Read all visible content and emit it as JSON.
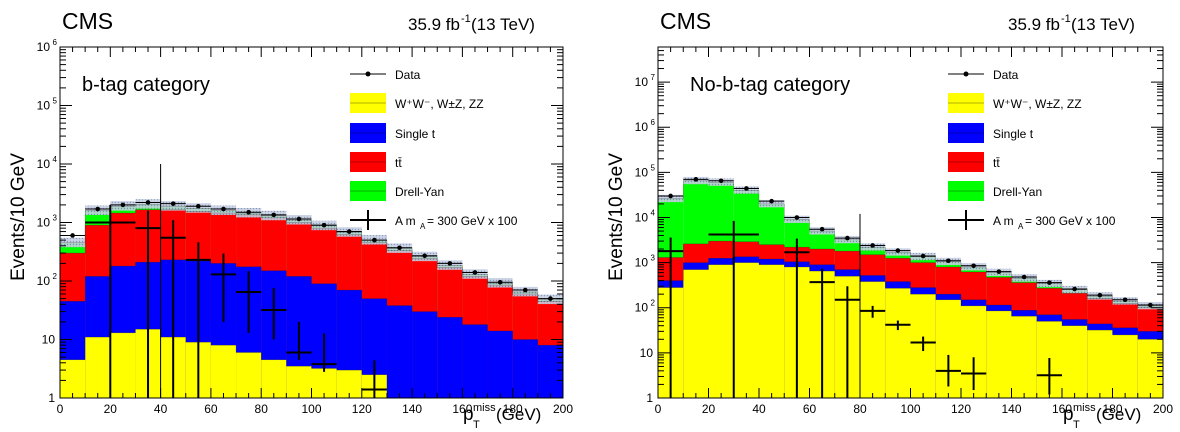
{
  "panels": [
    {
      "experiment": "CMS",
      "lumi": "35.9 fb",
      "lumi_exp": "-1",
      "energy": " (13 TeV)",
      "category": "b-tag category"
    },
    {
      "experiment": "CMS",
      "lumi": "35.9 fb",
      "lumi_exp": "-1",
      "energy": " (13 TeV)",
      "category": "No-b-tag category"
    }
  ],
  "legend": {
    "data": "Data",
    "diboson": "W⁺W⁻, W±Z, ZZ",
    "single_t": "Single t",
    "ttbar": "tt̄",
    "dy": "Drell-Yan",
    "signal": "A m",
    "signal_sub": "A",
    "signal_rest": "= 300 GeV x 100"
  },
  "axes": {
    "ylabel": "Events/10 GeV",
    "xlabel_p": "p",
    "xlabel_sub": "T",
    "xlabel_sup": "miss",
    "xlabel_unit": " (GeV)"
  },
  "colors": {
    "diboson": "#ffff00",
    "single_t": "#0000ff",
    "ttbar": "#ff0000",
    "dy": "#00ff00",
    "band": "#9aa8c8"
  },
  "chart_data": [
    {
      "type": "bar",
      "stacked": true,
      "yscale": "log",
      "xlim": [
        0,
        200
      ],
      "ylim": [
        1,
        1000000
      ],
      "bin_width": 10,
      "x": [
        5,
        15,
        25,
        35,
        45,
        55,
        65,
        75,
        85,
        95,
        105,
        115,
        125,
        135,
        145,
        155,
        165,
        175,
        185,
        195
      ],
      "cut_line_x": 40,
      "series": [
        {
          "name": "W⁺W⁻, W±Z, ZZ",
          "values": [
            4.5,
            11,
            13,
            15,
            11,
            9,
            8,
            6,
            4.5,
            3.5,
            3.2,
            3,
            2.5,
            1,
            1,
            1,
            1,
            1,
            1,
            1
          ]
        },
        {
          "name": "Single t",
          "values": [
            45,
            120,
            180,
            210,
            230,
            220,
            200,
            175,
            150,
            120,
            90,
            70,
            50,
            38,
            30,
            24,
            18,
            14,
            10,
            8
          ]
        },
        {
          "name": "tt̄",
          "values": [
            300,
            900,
            1450,
            1650,
            1650,
            1550,
            1450,
            1350,
            1200,
            1000,
            800,
            620,
            450,
            330,
            240,
            170,
            120,
            85,
            60,
            45
          ]
        },
        {
          "name": "Drell-Yan",
          "values": [
            450,
            1600,
            1900,
            2050,
            1900,
            1750,
            1600,
            1450,
            1300,
            1100,
            880,
            680,
            500,
            360,
            260,
            185,
            130,
            92,
            65,
            48
          ]
        }
      ],
      "data": [
        600,
        1700,
        2000,
        2200,
        2100,
        1900,
        1700,
        1500,
        1350,
        1150,
        900,
        700,
        500,
        370,
        270,
        200,
        140,
        95,
        70,
        50
      ],
      "signal": [
        {
          "x": 20,
          "xerr": 10,
          "y": 1000,
          "yerr": [
            1000,
            1000
          ]
        },
        {
          "x": 35,
          "xerr": 5,
          "y": 800,
          "yerr": [
            800,
            800
          ]
        },
        {
          "x": 45,
          "xerr": 5,
          "y": 550,
          "yerr": [
            550,
            550
          ]
        },
        {
          "x": 55,
          "xerr": 5,
          "y": 230,
          "yerr": [
            230,
            230
          ]
        },
        {
          "x": 65,
          "xerr": 5,
          "y": 130,
          "yerr": [
            110,
            165
          ]
        },
        {
          "x": 75,
          "xerr": 5,
          "y": 65,
          "yerr": [
            52,
            82
          ]
        },
        {
          "x": 85,
          "xerr": 5,
          "y": 32,
          "yerr": [
            22,
            44
          ]
        },
        {
          "x": 95,
          "xerr": 5,
          "y": 6,
          "yerr": [
            1.5,
            14
          ]
        },
        {
          "x": 105,
          "xerr": 5,
          "y": 3.8,
          "yerr": [
            1,
            9
          ]
        },
        {
          "x": 125,
          "xerr": 5,
          "y": 1.4,
          "yerr": [
            1,
            3
          ]
        }
      ]
    },
    {
      "type": "bar",
      "stacked": true,
      "yscale": "log",
      "xlim": [
        0,
        200
      ],
      "ylim": [
        1,
        60000000
      ],
      "bin_width": 10,
      "x": [
        5,
        15,
        25,
        35,
        45,
        55,
        65,
        75,
        85,
        95,
        105,
        115,
        125,
        135,
        145,
        155,
        165,
        175,
        185,
        195
      ],
      "cut_line_x": 80,
      "series": [
        {
          "name": "W⁺W⁻, W±Z, ZZ",
          "values": [
            280,
            700,
            900,
            1000,
            900,
            800,
            650,
            500,
            380,
            270,
            200,
            150,
            110,
            85,
            65,
            50,
            40,
            32,
            25,
            20
          ]
        },
        {
          "name": "Single t",
          "values": [
            400,
            1000,
            1250,
            1350,
            1200,
            1050,
            900,
            700,
            520,
            380,
            280,
            200,
            150,
            115,
            88,
            70,
            55,
            44,
            36,
            30
          ]
        },
        {
          "name": "tt̄",
          "values": [
            1300,
            2600,
            3000,
            2900,
            2500,
            2200,
            2000,
            1800,
            1500,
            1250,
            1000,
            800,
            620,
            470,
            360,
            270,
            210,
            160,
            125,
            100
          ]
        },
        {
          "name": "Drell-Yan",
          "values": [
            26000,
            65000,
            60000,
            40000,
            20000,
            9000,
            5000,
            3200,
            2200,
            1700,
            1350,
            1050,
            800,
            600,
            450,
            340,
            250,
            180,
            140,
            110
          ]
        }
      ],
      "data": [
        30000,
        70000,
        65000,
        44000,
        23000,
        10000,
        5500,
        3500,
        2400,
        1850,
        1400,
        1100,
        850,
        630,
        480,
        360,
        260,
        190,
        150,
        115
      ],
      "signal": [
        {
          "x": 5,
          "xerr": 5,
          "y": 1800,
          "yerr": [
            1800,
            1800
          ]
        },
        {
          "x": 30,
          "xerr": 10,
          "y": 4200,
          "yerr": [
            4200,
            4200
          ]
        },
        {
          "x": 55,
          "xerr": 5,
          "y": 1700,
          "yerr": [
            1700,
            1700
          ]
        },
        {
          "x": 65,
          "xerr": 5,
          "y": 370,
          "yerr": [
            370,
            370
          ]
        },
        {
          "x": 75,
          "xerr": 5,
          "y": 150,
          "yerr": [
            150,
            150
          ]
        },
        {
          "x": 85,
          "xerr": 5,
          "y": 85,
          "yerr": [
            25,
            25
          ]
        },
        {
          "x": 95,
          "xerr": 5,
          "y": 42,
          "yerr": [
            10,
            10
          ]
        },
        {
          "x": 105,
          "xerr": 5,
          "y": 17,
          "yerr": [
            6,
            6
          ]
        },
        {
          "x": 115,
          "xerr": 5,
          "y": 4,
          "yerr": [
            2.2,
            5
          ]
        },
        {
          "x": 125,
          "xerr": 5,
          "y": 3.5,
          "yerr": [
            2,
            4.5
          ]
        },
        {
          "x": 155,
          "xerr": 5,
          "y": 3.2,
          "yerr": [
            2,
            4.5
          ]
        }
      ]
    }
  ]
}
